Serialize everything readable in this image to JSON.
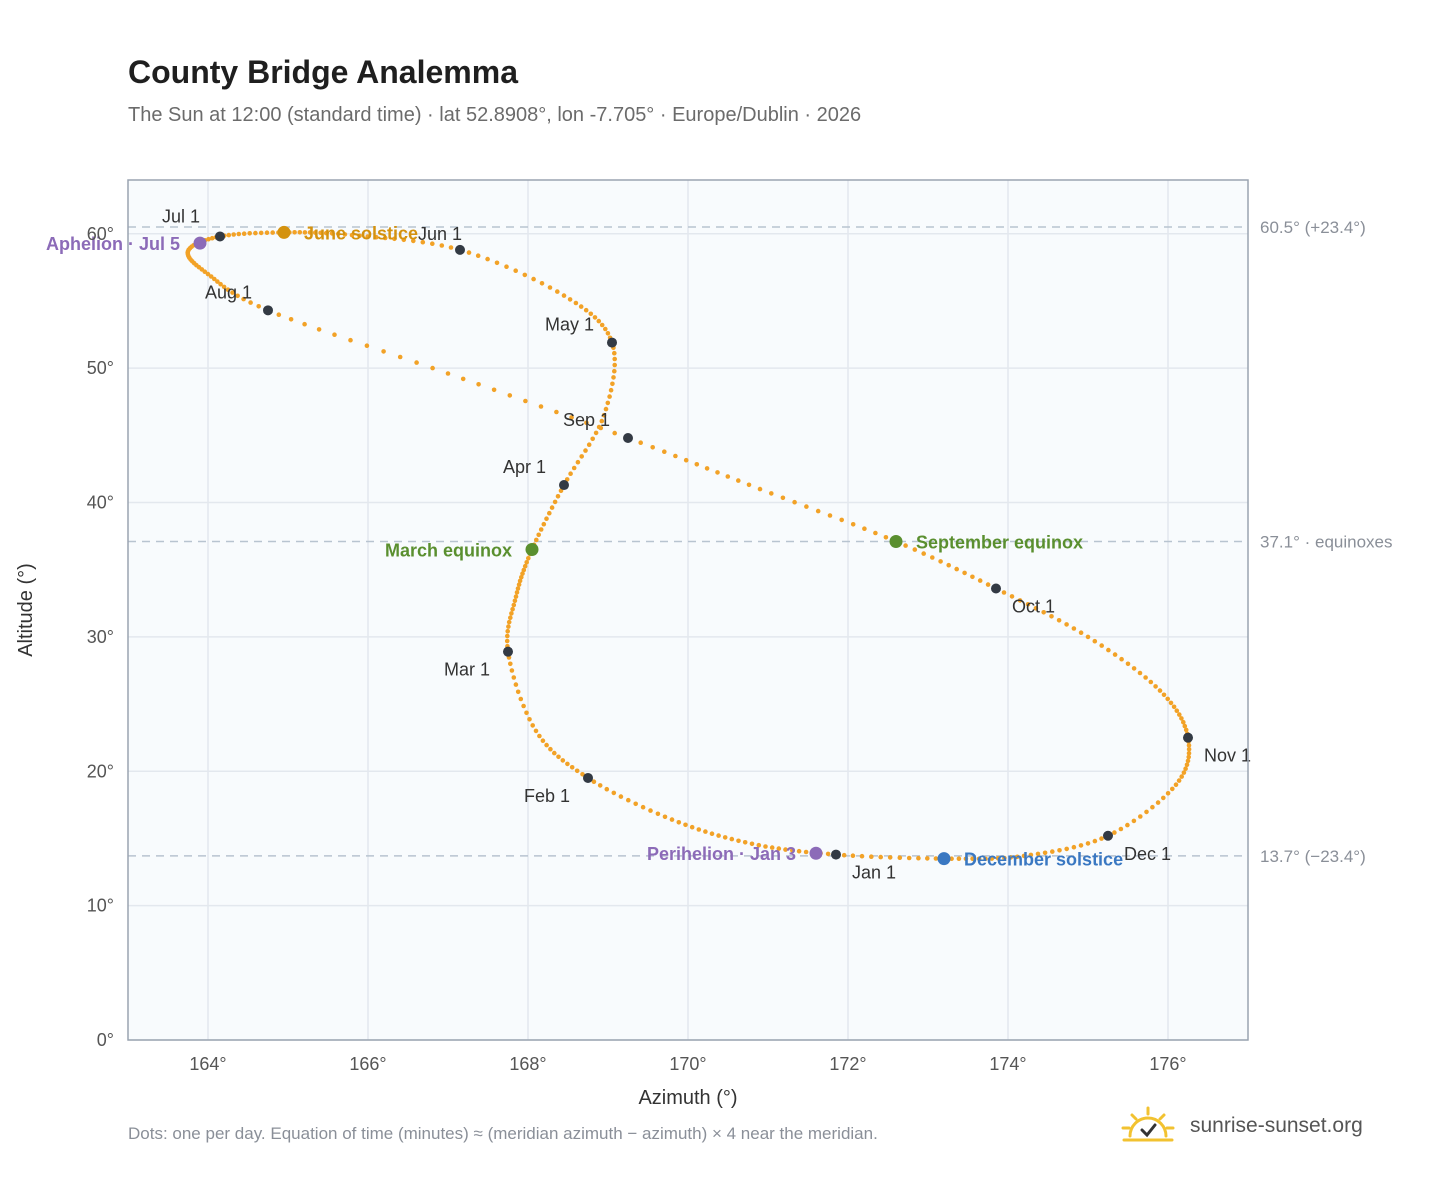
{
  "header": {
    "title": "County Bridge Analemma",
    "subtitle": "The Sun at 12:00 (standard time) · lat 52.8908°, lon -7.705° · Europe/Dublin · 2026"
  },
  "footer": {
    "note": "Dots: one per day. Equation of time (minutes) ≈ (meridian azimuth − azimuth) × 4 near the meridian.",
    "brand": "sunrise-sunset.org"
  },
  "colors": {
    "curve": "#f2a227",
    "month_dot": "#333a44",
    "solstice_june": "#d4920f",
    "equinox": "#5a8f2f",
    "solstice_december": "#3a78c2",
    "apsis": "#8c6bb8",
    "plot_bg": "#f8fbfd",
    "grid": "#e3e8ee",
    "reference_line": "#b8c4d0",
    "frame": "#9aa4b1"
  },
  "chart_data": {
    "type": "scatter",
    "title": "County Bridge Analemma",
    "xlabel": "Azimuth (°)",
    "ylabel": "Altitude (°)",
    "xlim": [
      163,
      177
    ],
    "ylim": [
      0,
      64
    ],
    "x_ticks": [
      "164°",
      "166°",
      "168°",
      "170°",
      "172°",
      "174°",
      "176°"
    ],
    "y_ticks": [
      "0°",
      "10°",
      "20°",
      "30°",
      "40°",
      "50°",
      "60°"
    ],
    "grid": true,
    "reference_lines": [
      {
        "y": 60.5,
        "label": "60.5° (+23.4°)"
      },
      {
        "y": 37.1,
        "label": "37.1° · equinoxes"
      },
      {
        "y": 13.7,
        "label": "13.7° (−23.4°)"
      }
    ],
    "month_markers": [
      {
        "label": "Jan 1",
        "date": "2026-01-01",
        "azimuth": 171.85,
        "altitude": 13.8
      },
      {
        "label": "Feb 1",
        "date": "2026-02-01",
        "azimuth": 168.75,
        "altitude": 19.5
      },
      {
        "label": "Mar 1",
        "date": "2026-03-01",
        "azimuth": 167.75,
        "altitude": 28.9
      },
      {
        "label": "Apr 1",
        "date": "2026-04-01",
        "azimuth": 168.45,
        "altitude": 41.3
      },
      {
        "label": "May 1",
        "date": "2026-05-01",
        "azimuth": 169.05,
        "altitude": 51.9
      },
      {
        "label": "Jun 1",
        "date": "2026-06-01",
        "azimuth": 167.15,
        "altitude": 58.8
      },
      {
        "label": "Jul 1",
        "date": "2026-07-01",
        "azimuth": 164.15,
        "altitude": 59.8
      },
      {
        "label": "Aug 1",
        "date": "2026-08-01",
        "azimuth": 164.75,
        "altitude": 54.3
      },
      {
        "label": "Sep 1",
        "date": "2026-09-01",
        "azimuth": 169.25,
        "altitude": 44.8
      },
      {
        "label": "Oct 1",
        "date": "2026-10-01",
        "azimuth": 173.85,
        "altitude": 33.6
      },
      {
        "label": "Nov 1",
        "date": "2026-11-01",
        "azimuth": 176.25,
        "altitude": 22.5
      },
      {
        "label": "Dec 1",
        "date": "2026-12-01",
        "azimuth": 175.25,
        "altitude": 15.2
      }
    ],
    "events": [
      {
        "label": "June solstice",
        "kind": "solstice_june",
        "azimuth": 164.95,
        "altitude": 60.1
      },
      {
        "label": "March equinox",
        "kind": "equinox",
        "azimuth": 168.05,
        "altitude": 36.5
      },
      {
        "label": "September equinox",
        "kind": "equinox",
        "azimuth": 172.6,
        "altitude": 37.1
      },
      {
        "label": "December solstice",
        "kind": "solstice_december",
        "azimuth": 173.2,
        "altitude": 13.5
      },
      {
        "label": "Aphelion · Jul 5",
        "kind": "apsis",
        "azimuth": 163.9,
        "altitude": 59.3
      },
      {
        "label": "Perihelion · Jan 3",
        "kind": "apsis",
        "azimuth": 171.6,
        "altitude": 13.9
      }
    ],
    "path_points": [
      [
        171.85,
        13.8
      ],
      [
        170.8,
        14.6
      ],
      [
        169.8,
        16.4
      ],
      [
        168.75,
        19.5
      ],
      [
        168.1,
        23.0
      ],
      [
        167.75,
        28.9
      ],
      [
        167.85,
        33.0
      ],
      [
        168.05,
        36.5
      ],
      [
        168.45,
        41.3
      ],
      [
        168.95,
        46.5
      ],
      [
        169.05,
        51.9
      ],
      [
        168.45,
        55.4
      ],
      [
        167.15,
        58.8
      ],
      [
        165.8,
        59.9
      ],
      [
        164.95,
        60.1
      ],
      [
        164.15,
        59.8
      ],
      [
        163.75,
        58.7
      ],
      [
        164.0,
        57.0
      ],
      [
        164.75,
        54.3
      ],
      [
        167.0,
        49.6
      ],
      [
        169.25,
        44.8
      ],
      [
        170.9,
        41.0
      ],
      [
        172.6,
        37.1
      ],
      [
        173.85,
        33.6
      ],
      [
        175.0,
        30.0
      ],
      [
        175.9,
        26.0
      ],
      [
        176.25,
        22.5
      ],
      [
        176.1,
        19.0
      ],
      [
        175.25,
        15.2
      ],
      [
        174.2,
        13.7
      ],
      [
        173.2,
        13.5
      ]
    ]
  }
}
